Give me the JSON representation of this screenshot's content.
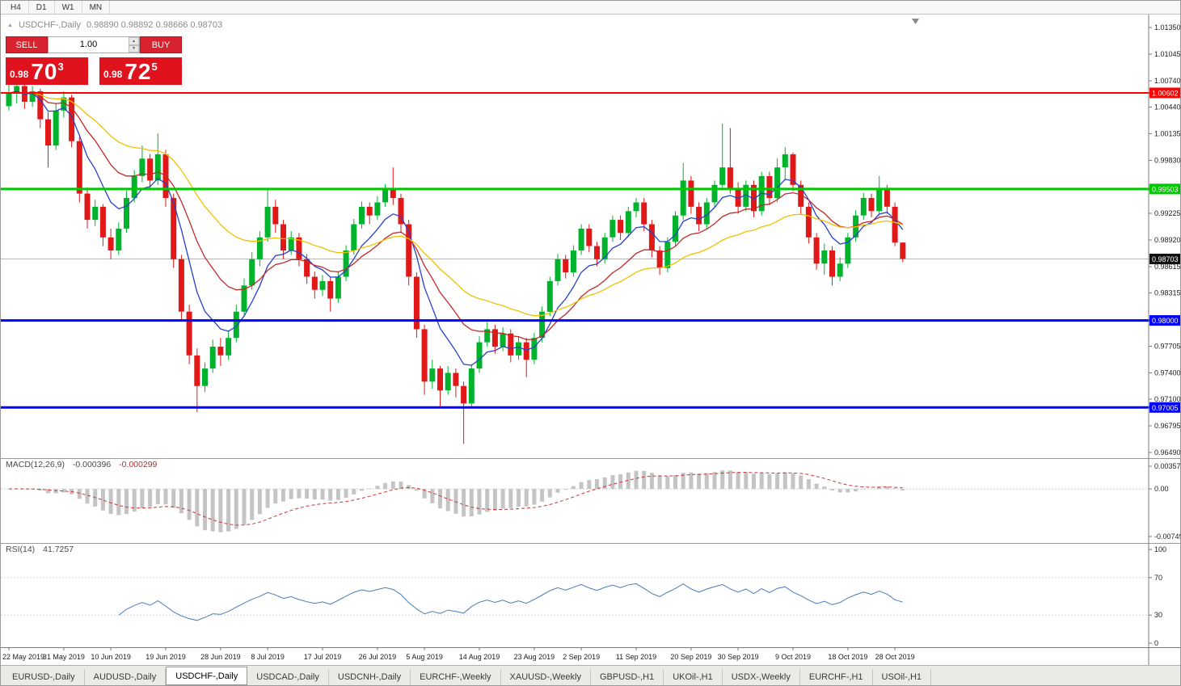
{
  "toolbar": {
    "periods": [
      "H4",
      "D1",
      "W1",
      "MN"
    ]
  },
  "icons": {
    "collapse": "▲",
    "spin_up": "▲",
    "spin_down": "▼"
  },
  "header": {
    "symbol": "USDCHF-,Daily",
    "ohlc": "0.98890 0.98892 0.98666 0.98703"
  },
  "trade": {
    "sell_label": "SELL",
    "buy_label": "BUY",
    "volume": "1.00",
    "sell_price": {
      "prefix": "0.98",
      "big": "70",
      "sup": "3"
    },
    "buy_price": {
      "prefix": "0.98",
      "big": "72",
      "sup": "5"
    }
  },
  "tabs": {
    "items": [
      {
        "label": "EURUSD-,Daily",
        "active": false
      },
      {
        "label": "AUDUSD-,Daily",
        "active": false
      },
      {
        "label": "USDCHF-,Daily",
        "active": true
      },
      {
        "label": "USDCAD-,Daily",
        "active": false
      },
      {
        "label": "USDCNH-,Daily",
        "active": false
      },
      {
        "label": "EURCHF-,Weekly",
        "active": false
      },
      {
        "label": "XAUUSD-,Weekly",
        "active": false
      },
      {
        "label": "GBPUSD-,H1",
        "active": false
      },
      {
        "label": "UKOil-,H1",
        "active": false
      },
      {
        "label": "USDX-,Weekly",
        "active": false
      },
      {
        "label": "EURCHF-,H1",
        "active": false
      },
      {
        "label": "USOil-,H1",
        "active": false
      }
    ]
  },
  "chart_data": {
    "type": "candlestick",
    "symbol": "USDCHF",
    "timeframe": "Daily",
    "ohlc_display": {
      "open": "0.98890",
      "high": "0.98892",
      "low": "0.98666",
      "close": "0.98703"
    },
    "y_axis": {
      "max": 1.0135,
      "min": 0.9649,
      "ticks": [
        "1.01350",
        "1.01045",
        "1.00740",
        "1.00440",
        "1.00135",
        "0.99830",
        "0.99530",
        "0.99225",
        "0.98920",
        "0.98615",
        "0.98315",
        "0.97705",
        "0.97400",
        "0.97100",
        "0.96795",
        "0.96490"
      ]
    },
    "x_labels": [
      {
        "idx": 0,
        "label": "22 May 2019"
      },
      {
        "idx": 7,
        "label": "31 May 2019"
      },
      {
        "idx": 13,
        "label": "10 Jun 2019"
      },
      {
        "idx": 20,
        "label": "19 Jun 2019"
      },
      {
        "idx": 27,
        "label": "28 Jun 2019"
      },
      {
        "idx": 33,
        "label": "8 Jul 2019"
      },
      {
        "idx": 40,
        "label": "17 Jul 2019"
      },
      {
        "idx": 47,
        "label": "26 Jul 2019"
      },
      {
        "idx": 53,
        "label": "5 Aug 2019"
      },
      {
        "idx": 60,
        "label": "14 Aug 2019"
      },
      {
        "idx": 67,
        "label": "23 Aug 2019"
      },
      {
        "idx": 73,
        "label": "2 Sep 2019"
      },
      {
        "idx": 80,
        "label": "11 Sep 2019"
      },
      {
        "idx": 87,
        "label": "20 Sep 2019"
      },
      {
        "idx": 93,
        "label": "30 Sep 2019"
      },
      {
        "idx": 100,
        "label": "9 Oct 2019"
      },
      {
        "idx": 107,
        "label": "18 Oct 2019"
      },
      {
        "idx": 113,
        "label": "28 Oct 2019"
      }
    ],
    "levels": [
      {
        "price": 1.00602,
        "label": "1.00602",
        "color": "#ff0000",
        "width": 2
      },
      {
        "price": 0.99503,
        "label": "0.99503",
        "color": "#00c800",
        "width": 3
      },
      {
        "price": 0.98,
        "label": "0.98000",
        "color": "#0000ff",
        "width": 3
      },
      {
        "price": 0.97005,
        "label": "0.97005",
        "color": "#0000ff",
        "width": 3
      }
    ],
    "bid": {
      "price": 0.98703,
      "label": "0.98703"
    },
    "moving_averages": [
      {
        "name": "fast",
        "period": 7,
        "color": "#2741cc"
      },
      {
        "name": "medium",
        "period": 15,
        "color": "#c22a2a"
      },
      {
        "name": "slow",
        "period": 30,
        "color": "#edc100"
      }
    ],
    "colors": {
      "up": "#00b32c",
      "down": "#e01818"
    },
    "candles": [
      [
        1.0045,
        1.0074,
        1.004,
        1.006
      ],
      [
        1.006,
        1.0072,
        1.0048,
        1.0068
      ],
      [
        1.0068,
        1.0071,
        1.0042,
        1.005
      ],
      [
        1.005,
        1.0068,
        1.0044,
        1.0062
      ],
      [
        1.0062,
        1.0065,
        1.002,
        1.003
      ],
      [
        1.003,
        1.0038,
        0.9975,
        1.0
      ],
      [
        1.0,
        1.0048,
        0.9995,
        1.004
      ],
      [
        1.004,
        1.0062,
        1.0032,
        1.0055
      ],
      [
        1.0055,
        1.0058,
        0.9998,
        1.0005
      ],
      [
        1.0005,
        1.001,
        0.9935,
        0.9945
      ],
      [
        0.9945,
        0.9952,
        0.9905,
        0.9915
      ],
      [
        0.9915,
        0.9938,
        0.9908,
        0.993
      ],
      [
        0.993,
        0.9933,
        0.9885,
        0.9895
      ],
      [
        0.9895,
        0.9905,
        0.987,
        0.988
      ],
      [
        0.988,
        0.9912,
        0.9875,
        0.9905
      ],
      [
        0.9905,
        0.9948,
        0.99,
        0.994
      ],
      [
        0.994,
        0.9972,
        0.9935,
        0.9965
      ],
      [
        0.9965,
        1.0,
        0.9958,
        0.9985
      ],
      [
        0.9985,
        0.999,
        0.995,
        0.996
      ],
      [
        0.996,
        1.0014,
        0.9955,
        0.999
      ],
      [
        0.999,
        0.9995,
        0.993,
        0.994
      ],
      [
        0.994,
        0.9945,
        0.986,
        0.987
      ],
      [
        0.987,
        0.9875,
        0.98,
        0.981
      ],
      [
        0.981,
        0.9818,
        0.975,
        0.976
      ],
      [
        0.976,
        0.9768,
        0.9695,
        0.9725
      ],
      [
        0.9725,
        0.9752,
        0.9718,
        0.9745
      ],
      [
        0.9745,
        0.9778,
        0.974,
        0.977
      ],
      [
        0.977,
        0.978,
        0.9748,
        0.976
      ],
      [
        0.976,
        0.9788,
        0.9755,
        0.978
      ],
      [
        0.978,
        0.9818,
        0.9775,
        0.981
      ],
      [
        0.981,
        0.9848,
        0.9805,
        0.984
      ],
      [
        0.984,
        0.9878,
        0.9835,
        0.987
      ],
      [
        0.987,
        0.9902,
        0.9862,
        0.9895
      ],
      [
        0.9895,
        0.995,
        0.989,
        0.993
      ],
      [
        0.993,
        0.9938,
        0.99,
        0.991
      ],
      [
        0.991,
        0.9915,
        0.987,
        0.988
      ],
      [
        0.988,
        0.9902,
        0.9875,
        0.9895
      ],
      [
        0.9895,
        0.99,
        0.9862,
        0.987
      ],
      [
        0.987,
        0.9876,
        0.9842,
        0.985
      ],
      [
        0.985,
        0.9856,
        0.9825,
        0.9835
      ],
      [
        0.9835,
        0.9852,
        0.9828,
        0.9845
      ],
      [
        0.9845,
        0.985,
        0.981,
        0.9825
      ],
      [
        0.9825,
        0.9856,
        0.982,
        0.985
      ],
      [
        0.985,
        0.9886,
        0.9845,
        0.988
      ],
      [
        0.988,
        0.9916,
        0.9875,
        0.991
      ],
      [
        0.991,
        0.9936,
        0.9905,
        0.993
      ],
      [
        0.993,
        0.9935,
        0.991,
        0.992
      ],
      [
        0.992,
        0.9942,
        0.9915,
        0.9935
      ],
      [
        0.9935,
        0.9956,
        0.993,
        0.995
      ],
      [
        0.995,
        0.9975,
        0.9932,
        0.994
      ],
      [
        0.994,
        0.9945,
        0.99,
        0.991
      ],
      [
        0.991,
        0.9915,
        0.984,
        0.985
      ],
      [
        0.985,
        0.9855,
        0.978,
        0.979
      ],
      [
        0.979,
        0.9795,
        0.9715,
        0.973
      ],
      [
        0.973,
        0.9755,
        0.9722,
        0.9745
      ],
      [
        0.9745,
        0.9748,
        0.97,
        0.972
      ],
      [
        0.972,
        0.9748,
        0.9715,
        0.974
      ],
      [
        0.974,
        0.9745,
        0.9712,
        0.9725
      ],
      [
        0.9725,
        0.973,
        0.9659,
        0.9705
      ],
      [
        0.9705,
        0.975,
        0.97,
        0.9745
      ],
      [
        0.9745,
        0.9782,
        0.974,
        0.9775
      ],
      [
        0.9775,
        0.9798,
        0.977,
        0.979
      ],
      [
        0.979,
        0.9795,
        0.9762,
        0.977
      ],
      [
        0.977,
        0.9792,
        0.9765,
        0.9785
      ],
      [
        0.9785,
        0.979,
        0.9752,
        0.976
      ],
      [
        0.976,
        0.9782,
        0.9755,
        0.9775
      ],
      [
        0.9775,
        0.978,
        0.9735,
        0.9755
      ],
      [
        0.9755,
        0.9786,
        0.975,
        0.978
      ],
      [
        0.978,
        0.9816,
        0.9775,
        0.981
      ],
      [
        0.981,
        0.985,
        0.9805,
        0.9845
      ],
      [
        0.9845,
        0.9876,
        0.984,
        0.987
      ],
      [
        0.987,
        0.9875,
        0.9848,
        0.9855
      ],
      [
        0.9855,
        0.9886,
        0.985,
        0.988
      ],
      [
        0.988,
        0.991,
        0.9875,
        0.9905
      ],
      [
        0.9905,
        0.991,
        0.9878,
        0.9885
      ],
      [
        0.9885,
        0.989,
        0.9862,
        0.987
      ],
      [
        0.987,
        0.99,
        0.9865,
        0.9895
      ],
      [
        0.9895,
        0.992,
        0.989,
        0.9915
      ],
      [
        0.9915,
        0.992,
        0.9892,
        0.99
      ],
      [
        0.99,
        0.993,
        0.9895,
        0.9925
      ],
      [
        0.9925,
        0.994,
        0.9918,
        0.9935
      ],
      [
        0.9935,
        0.994,
        0.9902,
        0.991
      ],
      [
        0.991,
        0.9915,
        0.9872,
        0.988
      ],
      [
        0.988,
        0.9885,
        0.9852,
        0.986
      ],
      [
        0.986,
        0.9895,
        0.9855,
        0.989
      ],
      [
        0.989,
        0.9925,
        0.9885,
        0.992
      ],
      [
        0.992,
        0.998,
        0.9915,
        0.996
      ],
      [
        0.996,
        0.9965,
        0.9922,
        0.993
      ],
      [
        0.993,
        0.9935,
        0.9902,
        0.991
      ],
      [
        0.991,
        0.994,
        0.9905,
        0.9935
      ],
      [
        0.9935,
        0.996,
        0.993,
        0.9955
      ],
      [
        0.9955,
        1.0025,
        0.995,
        0.9975
      ],
      [
        0.9975,
        1.002,
        0.9945,
        0.995
      ],
      [
        0.995,
        0.9958,
        0.9922,
        0.993
      ],
      [
        0.993,
        0.996,
        0.9925,
        0.9955
      ],
      [
        0.9955,
        0.996,
        0.9918,
        0.9925
      ],
      [
        0.9925,
        0.997,
        0.992,
        0.9965
      ],
      [
        0.9965,
        0.997,
        0.9932,
        0.994
      ],
      [
        0.994,
        0.9985,
        0.9935,
        0.9975
      ],
      [
        0.9975,
        0.9998,
        0.996,
        0.999
      ],
      [
        0.999,
        0.9992,
        0.9948,
        0.9955
      ],
      [
        0.9955,
        0.996,
        0.9922,
        0.993
      ],
      [
        0.993,
        0.9935,
        0.9888,
        0.9895
      ],
      [
        0.9895,
        0.99,
        0.9858,
        0.9865
      ],
      [
        0.9865,
        0.9888,
        0.9852,
        0.988
      ],
      [
        0.988,
        0.9885,
        0.984,
        0.985
      ],
      [
        0.985,
        0.9872,
        0.9845,
        0.9865
      ],
      [
        0.9865,
        0.99,
        0.986,
        0.9895
      ],
      [
        0.9895,
        0.9926,
        0.989,
        0.992
      ],
      [
        0.992,
        0.9946,
        0.9915,
        0.994
      ],
      [
        0.994,
        0.9945,
        0.9918,
        0.9925
      ],
      [
        0.9925,
        0.9965,
        0.992,
        0.995
      ],
      [
        0.995,
        0.9955,
        0.9922,
        0.993
      ],
      [
        0.993,
        0.9935,
        0.9885,
        0.9889
      ],
      [
        0.9889,
        0.98892,
        0.98666,
        0.98703
      ]
    ],
    "indicators": {
      "macd": {
        "label": "MACD(12,26,9)",
        "value_main": "-0.000396",
        "value_signal": "-0.000299",
        "fast": 12,
        "slow": 26,
        "signal": 9,
        "scale_max": 0.003574,
        "scale_min": -0.00749,
        "ticks": [
          {
            "label": "0.003574",
            "value": 0.003574
          },
          {
            "label": "0.00",
            "value": 0
          },
          {
            "label": "-0.00749",
            "value": -0.00749
          }
        ],
        "hist_color": "#c4c4c4",
        "signal_color": "#cc3333"
      },
      "rsi": {
        "label": "RSI(14)",
        "value": "41.7257",
        "period": 14,
        "ticks": [
          {
            "label": "100",
            "value": 100
          },
          {
            "label": "70",
            "value": 70
          },
          {
            "label": "30",
            "value": 30
          },
          {
            "label": "0",
            "value": 0
          }
        ],
        "levels": [
          70,
          30
        ],
        "line_color": "#4a7cb8"
      }
    }
  }
}
